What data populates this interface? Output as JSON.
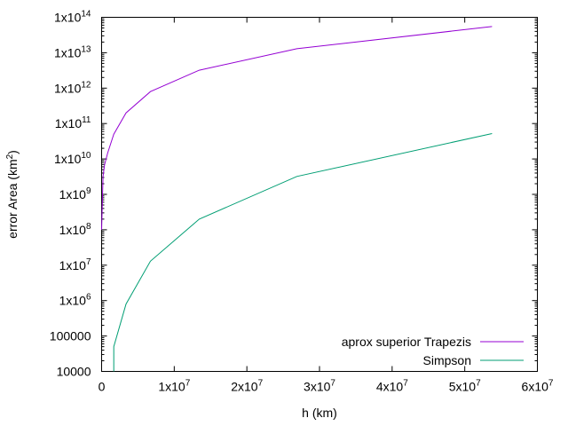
{
  "chart_data": {
    "type": "line",
    "xlabel": "h (km)",
    "ylabel": {
      "prefix": "error Area (km",
      "sup": "2",
      "suffix": ")"
    },
    "x_scale": "linear",
    "y_scale": "log",
    "xlim": [
      0,
      60000000
    ],
    "ylim": [
      10000,
      100000000000000
    ],
    "grid": false,
    "legend_position": "bottom-right",
    "x_ticks": [
      {
        "value": 0,
        "mantissa": "0",
        "exp": ""
      },
      {
        "value": 10000000,
        "mantissa": "1x10",
        "exp": "7"
      },
      {
        "value": 20000000,
        "mantissa": "2x10",
        "exp": "7"
      },
      {
        "value": 30000000,
        "mantissa": "3x10",
        "exp": "7"
      },
      {
        "value": 40000000,
        "mantissa": "4x10",
        "exp": "7"
      },
      {
        "value": 50000000,
        "mantissa": "5x10",
        "exp": "7"
      },
      {
        "value": 60000000,
        "mantissa": "6x10",
        "exp": "7"
      }
    ],
    "y_ticks": [
      {
        "value": 10000,
        "mantissa": "10000",
        "exp": ""
      },
      {
        "value": 100000,
        "mantissa": "100000",
        "exp": ""
      },
      {
        "value": 1000000,
        "mantissa": "1x10",
        "exp": "6"
      },
      {
        "value": 10000000,
        "mantissa": "1x10",
        "exp": "7"
      },
      {
        "value": 100000000,
        "mantissa": "1x10",
        "exp": "8"
      },
      {
        "value": 1000000000,
        "mantissa": "1x10",
        "exp": "9"
      },
      {
        "value": 10000000000,
        "mantissa": "1x10",
        "exp": "10"
      },
      {
        "value": 100000000000,
        "mantissa": "1x10",
        "exp": "11"
      },
      {
        "value": 1000000000000,
        "mantissa": "1x10",
        "exp": "12"
      },
      {
        "value": 10000000000000,
        "mantissa": "1x10",
        "exp": "13"
      },
      {
        "value": 100000000000000,
        "mantissa": "1x10",
        "exp": "14"
      }
    ],
    "series": [
      {
        "name": "aprox superior Trapezis",
        "color": "#9400d3",
        "points": [
          [
            0,
            100000000
          ],
          [
            200000,
            3200000000
          ],
          [
            420000,
            7000000000
          ],
          [
            840000,
            15000000000
          ],
          [
            1680000,
            50000000000
          ],
          [
            3360000,
            200000000000
          ],
          [
            6720000,
            800000000000
          ],
          [
            13440000,
            3200000000000
          ],
          [
            26880000,
            13000000000000
          ],
          [
            53760000,
            55000000000000
          ]
        ]
      },
      {
        "name": "Simpson",
        "color": "#009e73",
        "points": [
          [
            1680000,
            10000
          ],
          [
            1680000,
            50000
          ],
          [
            3360000,
            800000
          ],
          [
            6720000,
            13000000
          ],
          [
            13440000,
            200000000
          ],
          [
            26880000,
            3200000000
          ],
          [
            53760000,
            52000000000
          ]
        ]
      }
    ]
  }
}
